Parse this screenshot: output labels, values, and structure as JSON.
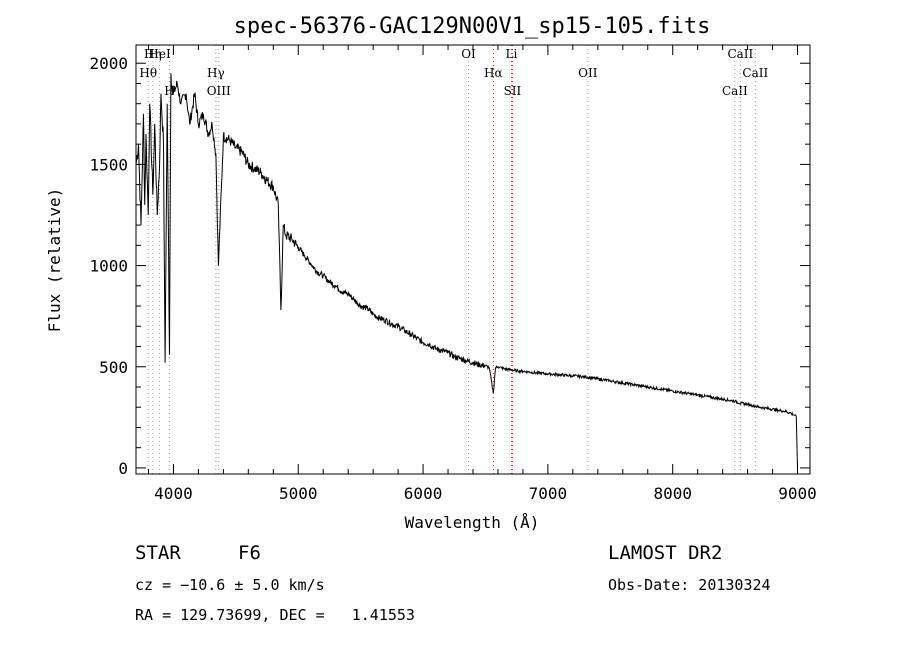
{
  "chart_data": {
    "type": "line",
    "title": "spec-56376-GAC129N00V1_sp15-105.fits",
    "xlabel": "Wavelength (Å)",
    "ylabel": "Flux (relative)",
    "xlim": [
      3700,
      9100
    ],
    "ylim": [
      -30,
      2090
    ],
    "xticks": [
      4000,
      5000,
      6000,
      7000,
      8000,
      9000
    ],
    "yticks": [
      0,
      500,
      1000,
      1500,
      2000
    ],
    "grid": false,
    "series": [
      {
        "x": [
          3700,
          3720,
          3740,
          3760,
          3770,
          3780,
          3798,
          3810,
          3835,
          3850,
          3870,
          3889,
          3900,
          3920,
          3933,
          3950,
          3968,
          3980,
          4000,
          4030,
          4060,
          4101,
          4130,
          4170,
          4200,
          4240,
          4280,
          4310,
          4340,
          4360,
          4400,
          4450,
          4500,
          4550,
          4600,
          4650,
          4700,
          4750,
          4800,
          4840,
          4861,
          4880,
          4900,
          4950,
          5000,
          5050,
          5100,
          5150,
          5200,
          5250,
          5300,
          5350,
          5400,
          5450,
          5500,
          5550,
          5600,
          5650,
          5700,
          5750,
          5800,
          5850,
          5900,
          5950,
          6000,
          6050,
          6100,
          6150,
          6200,
          6250,
          6300,
          6350,
          6400,
          6450,
          6500,
          6530,
          6563,
          6580,
          6600,
          6650,
          6700,
          6750,
          6800,
          6900,
          7000,
          7100,
          7200,
          7300,
          7400,
          7500,
          7600,
          7700,
          7800,
          7900,
          8000,
          8100,
          8200,
          8300,
          8400,
          8498,
          8542,
          8600,
          8662,
          8700,
          8750,
          8800,
          8850,
          8900,
          8950,
          8980,
          8990,
          9000
        ],
        "values": [
          1500,
          1600,
          1200,
          1750,
          1300,
          1650,
          1250,
          1800,
          1350,
          1700,
          1250,
          1500,
          1850,
          1600,
          520,
          1800,
          560,
          1950,
          1850,
          1900,
          1800,
          1850,
          1700,
          1850,
          1700,
          1750,
          1650,
          1700,
          1550,
          1000,
          1640,
          1620,
          1580,
          1560,
          1500,
          1480,
          1460,
          1420,
          1390,
          1300,
          780,
          1200,
          1150,
          1130,
          1090,
          1050,
          1010,
          970,
          950,
          920,
          900,
          870,
          860,
          830,
          800,
          790,
          760,
          740,
          730,
          710,
          700,
          680,
          660,
          640,
          620,
          610,
          590,
          580,
          570,
          550,
          540,
          530,
          520,
          510,
          505,
          495,
          370,
          495,
          500,
          490,
          485,
          480,
          478,
          470,
          465,
          460,
          455,
          450,
          440,
          430,
          420,
          410,
          400,
          390,
          380,
          370,
          360,
          350,
          340,
          330,
          320,
          315,
          305,
          300,
          295,
          290,
          285,
          280,
          270,
          260,
          250,
          0
        ]
      }
    ],
    "lines": [
      {
        "label": "Hη",
        "wl": 3835,
        "color": "#999999"
      },
      {
        "label": "Hθ",
        "wl": 3798,
        "color": "#999999"
      },
      {
        "label": "H",
        "wl": 3968,
        "color": "#999999"
      },
      {
        "label": "HeI",
        "wl": 3889,
        "color": "#999999"
      },
      {
        "label": "Hγ",
        "wl": 4340,
        "color": "#999999"
      },
      {
        "label": "OIII",
        "wl": 4363,
        "color": "#999999"
      },
      {
        "label": "OI",
        "wl": 6364,
        "color": "#999999"
      },
      {
        "label": "Hα",
        "wl": 6563,
        "color": "#ff0000"
      },
      {
        "label": "SII",
        "wl": 6716,
        "color": "#ff0000"
      },
      {
        "label": "Li",
        "wl": 6708,
        "color": "#ff0000"
      },
      {
        "label": "OII",
        "wl": 7320,
        "color": "#999999"
      },
      {
        "label": "CaII",
        "wl": 8498,
        "color": "#999999"
      },
      {
        "label": "CaII",
        "wl": 8542,
        "color": "#999999"
      },
      {
        "label": "CaII",
        "wl": 8662,
        "color": "#999999"
      }
    ]
  },
  "info": {
    "object_class": "STAR",
    "subclass": "F6",
    "survey": "LAMOST DR2",
    "cz": "cz = −10.6 ± 5.0 km/s",
    "obs_date": "Obs-Date: 20130324",
    "coords": "RA = 129.73699, DEC =   1.41553"
  }
}
